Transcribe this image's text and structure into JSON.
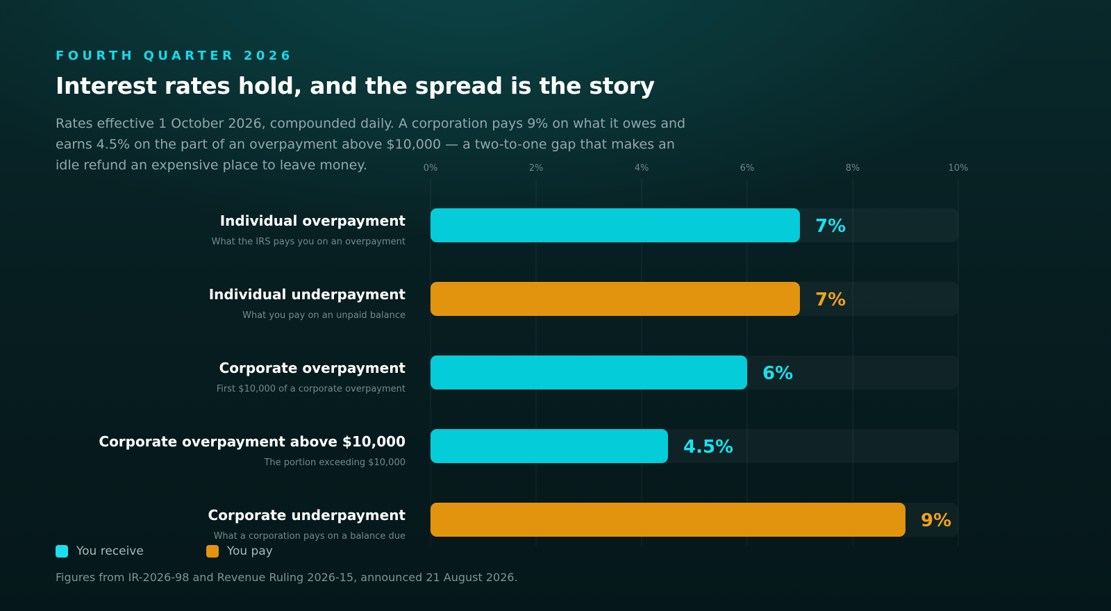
{
  "header": {
    "kicker": "FOURTH QUARTER 2026",
    "title": "Interest rates hold, and the spread is the story",
    "subtitle": "Rates effective 1 October 2026, compounded daily. A corporation pays 9% on what it owes and earns 4.5% on the part of an overpayment above $10,000 — a two-to-one gap that makes an idle refund an expensive place to leave money."
  },
  "colors": {
    "receive": "#05ccd9",
    "pay": "#e3940f",
    "receive_label": "#19e0ee",
    "pay_label": "#f0a21c"
  },
  "legend": {
    "receive_label": "You receive",
    "pay_label": "You pay"
  },
  "footnote": "Figures from IR-2026-98 and Revenue Ruling 2026-15, announced 21 August 2026.",
  "chart_data": {
    "type": "bar",
    "orientation": "horizontal",
    "xlim": [
      0,
      10
    ],
    "x_ticks": [
      "0%",
      "2%",
      "4%",
      "6%",
      "8%",
      "10%"
    ],
    "x_tick_values": [
      0,
      2,
      4,
      6,
      8,
      10
    ],
    "grid": true,
    "legend_position": "bottom-left",
    "categories": [
      "Individual overpayment",
      "Individual underpayment",
      "Corporate overpayment",
      "Corporate overpayment above $10,000",
      "Corporate underpayment"
    ],
    "descriptions": [
      "What the IRS pays you on an overpayment",
      "What you pay on an unpaid balance",
      "First $10,000 of a corporate overpayment",
      "The portion exceeding $10,000",
      "What a corporation pays on a balance due"
    ],
    "values": [
      7,
      7,
      6,
      4.5,
      9
    ],
    "value_labels": [
      "7%",
      "7%",
      "6%",
      "4.5%",
      "9%"
    ],
    "kinds": [
      "receive",
      "pay",
      "receive",
      "receive",
      "pay"
    ]
  }
}
